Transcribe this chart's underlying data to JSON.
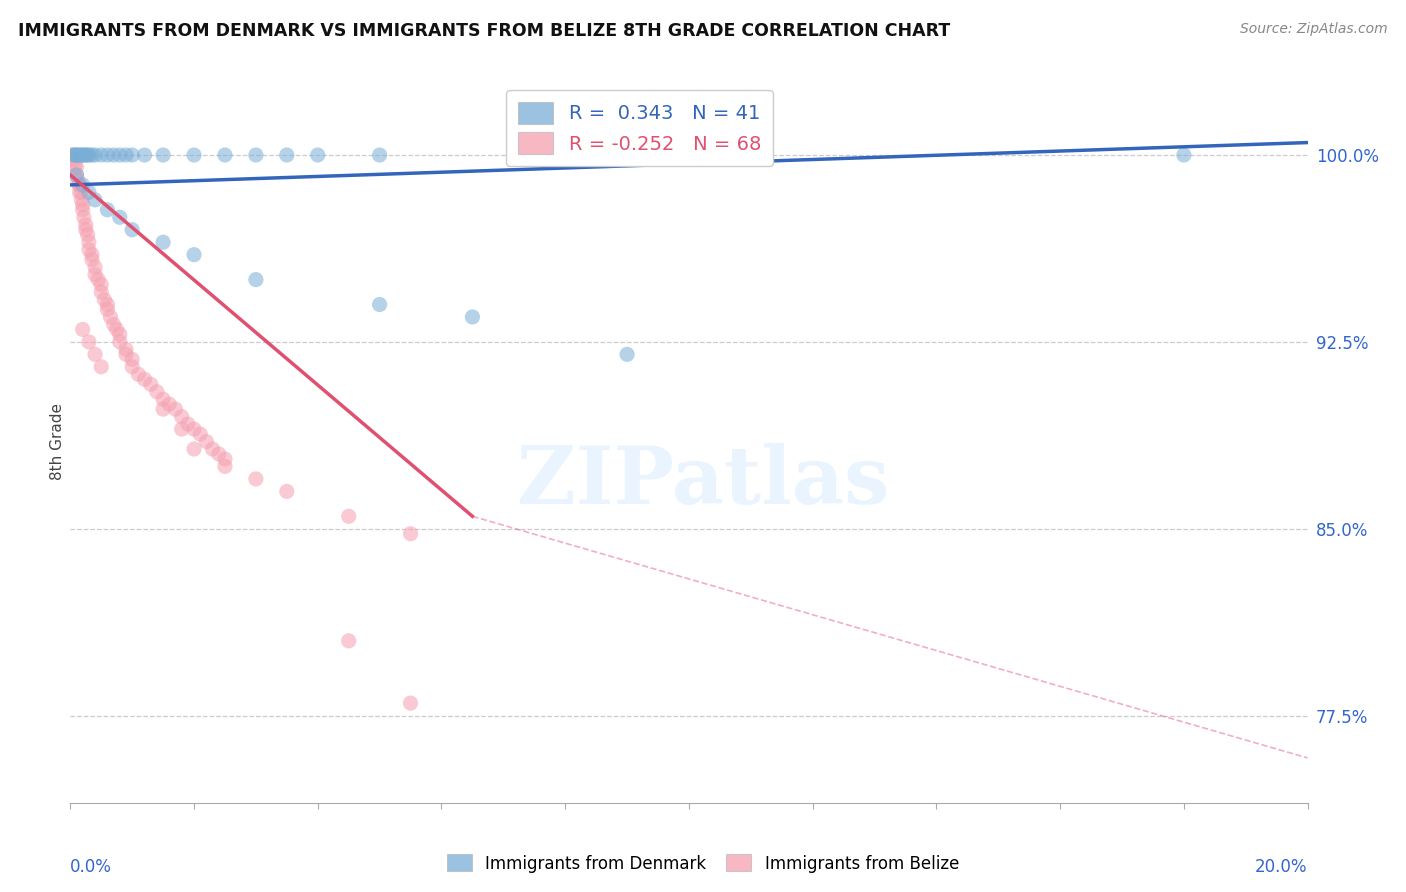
{
  "title": "IMMIGRANTS FROM DENMARK VS IMMIGRANTS FROM BELIZE 8TH GRADE CORRELATION CHART",
  "source": "Source: ZipAtlas.com",
  "ylabel": "8th Grade",
  "yticks": [
    77.5,
    85.0,
    92.5,
    100.0
  ],
  "xlim": [
    0.0,
    20.0
  ],
  "ylim": [
    74.0,
    103.0
  ],
  "denmark_color": "#7aaed6",
  "belize_color": "#f5a0b0",
  "denmark_line_color": "#3366bb",
  "belize_line_color": "#e05070",
  "denmark_R": 0.343,
  "denmark_N": 41,
  "belize_R": -0.252,
  "belize_N": 68,
  "legend_label_denmark": "Immigrants from Denmark",
  "legend_label_belize": "Immigrants from Belize",
  "denmark_trendline": [
    0.0,
    98.8,
    20.0,
    100.5
  ],
  "belize_trendline_solid": [
    0.0,
    99.2,
    6.5,
    85.5
  ],
  "belize_trendline_dashed": [
    6.5,
    85.5,
    20.0,
    75.8
  ],
  "denmark_scatter": [
    [
      0.05,
      100.0
    ],
    [
      0.08,
      100.0
    ],
    [
      0.1,
      100.0
    ],
    [
      0.12,
      100.0
    ],
    [
      0.15,
      100.0
    ],
    [
      0.18,
      100.0
    ],
    [
      0.2,
      100.0
    ],
    [
      0.22,
      100.0
    ],
    [
      0.25,
      100.0
    ],
    [
      0.28,
      100.0
    ],
    [
      0.3,
      100.0
    ],
    [
      0.35,
      100.0
    ],
    [
      0.4,
      100.0
    ],
    [
      0.5,
      100.0
    ],
    [
      0.6,
      100.0
    ],
    [
      0.7,
      100.0
    ],
    [
      0.8,
      100.0
    ],
    [
      0.9,
      100.0
    ],
    [
      1.0,
      100.0
    ],
    [
      1.2,
      100.0
    ],
    [
      1.5,
      100.0
    ],
    [
      2.0,
      100.0
    ],
    [
      2.5,
      100.0
    ],
    [
      3.0,
      100.0
    ],
    [
      3.5,
      100.0
    ],
    [
      4.0,
      100.0
    ],
    [
      5.0,
      100.0
    ],
    [
      18.0,
      100.0
    ],
    [
      0.1,
      99.2
    ],
    [
      0.2,
      98.8
    ],
    [
      0.3,
      98.5
    ],
    [
      0.4,
      98.2
    ],
    [
      0.6,
      97.8
    ],
    [
      0.8,
      97.5
    ],
    [
      1.0,
      97.0
    ],
    [
      1.5,
      96.5
    ],
    [
      2.0,
      96.0
    ],
    [
      3.0,
      95.0
    ],
    [
      5.0,
      94.0
    ],
    [
      6.5,
      93.5
    ],
    [
      9.0,
      92.0
    ]
  ],
  "belize_scatter": [
    [
      0.02,
      100.0
    ],
    [
      0.04,
      100.0
    ],
    [
      0.06,
      99.8
    ],
    [
      0.08,
      99.6
    ],
    [
      0.1,
      99.5
    ],
    [
      0.1,
      99.2
    ],
    [
      0.12,
      99.0
    ],
    [
      0.14,
      98.8
    ],
    [
      0.15,
      98.8
    ],
    [
      0.15,
      98.5
    ],
    [
      0.18,
      98.5
    ],
    [
      0.18,
      98.2
    ],
    [
      0.2,
      98.0
    ],
    [
      0.2,
      97.8
    ],
    [
      0.22,
      97.5
    ],
    [
      0.25,
      97.2
    ],
    [
      0.25,
      97.0
    ],
    [
      0.28,
      96.8
    ],
    [
      0.3,
      96.5
    ],
    [
      0.3,
      96.2
    ],
    [
      0.35,
      96.0
    ],
    [
      0.35,
      95.8
    ],
    [
      0.4,
      95.5
    ],
    [
      0.4,
      95.2
    ],
    [
      0.45,
      95.0
    ],
    [
      0.5,
      94.8
    ],
    [
      0.5,
      94.5
    ],
    [
      0.55,
      94.2
    ],
    [
      0.6,
      94.0
    ],
    [
      0.6,
      93.8
    ],
    [
      0.65,
      93.5
    ],
    [
      0.7,
      93.2
    ],
    [
      0.75,
      93.0
    ],
    [
      0.8,
      92.8
    ],
    [
      0.8,
      92.5
    ],
    [
      0.9,
      92.2
    ],
    [
      0.9,
      92.0
    ],
    [
      1.0,
      91.8
    ],
    [
      1.0,
      91.5
    ],
    [
      1.1,
      91.2
    ],
    [
      1.2,
      91.0
    ],
    [
      1.3,
      90.8
    ],
    [
      1.4,
      90.5
    ],
    [
      1.5,
      90.2
    ],
    [
      1.6,
      90.0
    ],
    [
      1.7,
      89.8
    ],
    [
      1.8,
      89.5
    ],
    [
      1.9,
      89.2
    ],
    [
      2.0,
      89.0
    ],
    [
      2.1,
      88.8
    ],
    [
      2.2,
      88.5
    ],
    [
      2.3,
      88.2
    ],
    [
      2.4,
      88.0
    ],
    [
      2.5,
      87.8
    ],
    [
      0.2,
      93.0
    ],
    [
      0.3,
      92.5
    ],
    [
      0.4,
      92.0
    ],
    [
      0.5,
      91.5
    ],
    [
      1.5,
      89.8
    ],
    [
      1.8,
      89.0
    ],
    [
      2.0,
      88.2
    ],
    [
      2.5,
      87.5
    ],
    [
      3.0,
      87.0
    ],
    [
      3.5,
      86.5
    ],
    [
      4.5,
      85.5
    ],
    [
      5.5,
      84.8
    ],
    [
      4.5,
      80.5
    ],
    [
      5.5,
      78.0
    ]
  ]
}
